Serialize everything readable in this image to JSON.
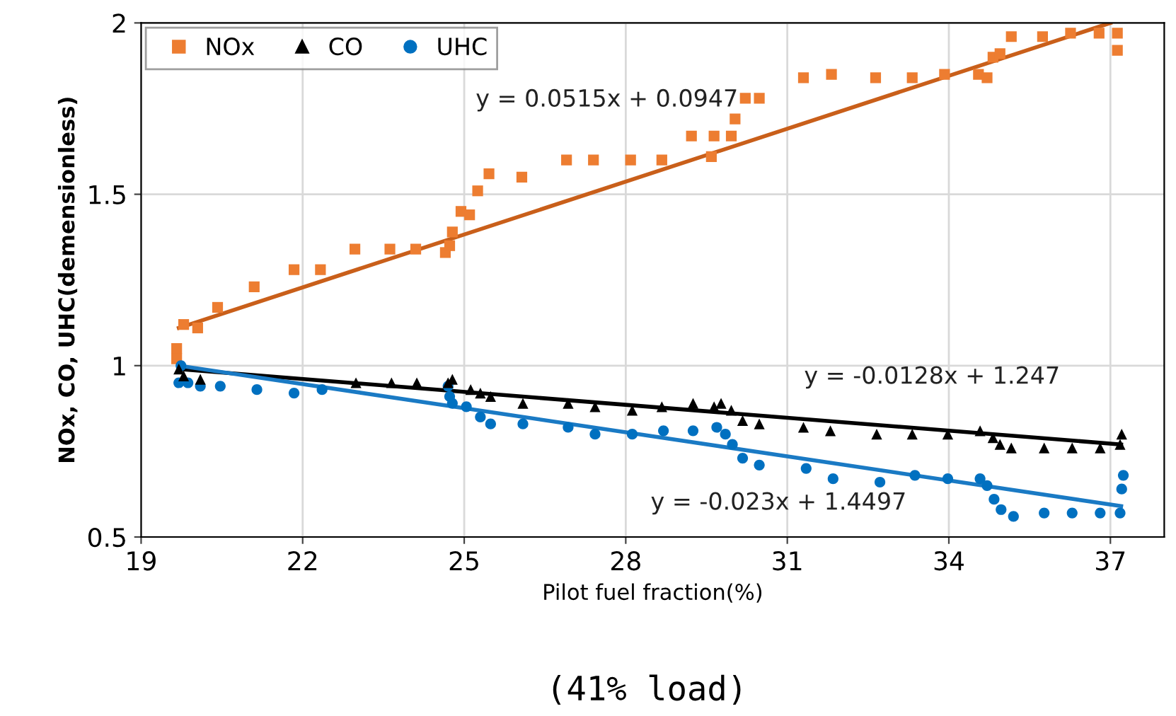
{
  "chart_data": {
    "type": "scatter",
    "xlabel": "Pilot fuel fraction(%)",
    "ylabel": "NOx, CO, UHC(demensionless)",
    "xlim": [
      19,
      38
    ],
    "xticks": [
      19,
      22,
      25,
      28,
      31,
      34,
      37
    ],
    "ylim": [
      0.5,
      2
    ],
    "yticks": [
      0.5,
      1,
      1.5,
      2
    ],
    "grid": true,
    "legend": "top left",
    "series": [
      {
        "name": "NOx",
        "color": "#ed7d31",
        "marker": "square",
        "x": [
          19.66,
          19.66,
          19.79,
          20.05,
          20.42,
          21.1,
          21.84,
          22.33,
          22.97,
          23.62,
          24.1,
          24.65,
          24.73,
          24.78,
          24.94,
          25.1,
          25.25,
          25.46,
          26.07,
          26.9,
          27.4,
          28.09,
          28.67,
          29.22,
          29.59,
          29.64,
          29.96,
          30.03,
          30.22,
          30.48,
          31.3,
          31.82,
          32.64,
          33.32,
          33.92,
          34.55,
          34.71,
          34.82,
          34.95,
          35.16,
          35.74,
          36.26,
          36.79,
          37.13,
          37.13
        ],
        "values": [
          1.05,
          1.02,
          1.12,
          1.11,
          1.17,
          1.23,
          1.28,
          1.28,
          1.34,
          1.34,
          1.34,
          1.33,
          1.35,
          1.39,
          1.45,
          1.44,
          1.51,
          1.56,
          1.55,
          1.6,
          1.6,
          1.6,
          1.6,
          1.67,
          1.61,
          1.67,
          1.67,
          1.72,
          1.78,
          1.78,
          1.84,
          1.85,
          1.84,
          1.84,
          1.85,
          1.85,
          1.84,
          1.9,
          1.91,
          1.96,
          1.96,
          1.97,
          1.97,
          1.97,
          1.92
        ]
      },
      {
        "name": "CO",
        "color": "#000000",
        "marker": "triangle",
        "x": [
          19.7,
          19.79,
          20.1,
          22.99,
          23.65,
          24.12,
          24.7,
          24.78,
          25.12,
          25.3,
          25.49,
          26.09,
          26.93,
          27.43,
          28.12,
          28.67,
          29.25,
          29.64,
          29.77,
          29.96,
          30.17,
          30.48,
          31.3,
          31.8,
          32.66,
          33.32,
          33.98,
          34.58,
          34.82,
          34.95,
          35.16,
          35.77,
          36.29,
          36.81,
          37.18,
          37.21
        ],
        "values": [
          0.99,
          0.97,
          0.96,
          0.95,
          0.95,
          0.95,
          0.95,
          0.96,
          0.93,
          0.92,
          0.91,
          0.89,
          0.89,
          0.88,
          0.87,
          0.88,
          0.89,
          0.88,
          0.89,
          0.87,
          0.84,
          0.83,
          0.82,
          0.81,
          0.8,
          0.8,
          0.8,
          0.81,
          0.79,
          0.77,
          0.76,
          0.76,
          0.76,
          0.76,
          0.77,
          0.8
        ]
      },
      {
        "name": "UHC",
        "color": "#0070c0",
        "marker": "circle",
        "x": [
          19.74,
          19.7,
          19.87,
          20.1,
          20.47,
          21.15,
          21.84,
          22.36,
          24.7,
          24.73,
          24.78,
          25.04,
          25.3,
          25.49,
          26.09,
          26.93,
          27.43,
          28.12,
          28.7,
          29.25,
          29.69,
          29.85,
          29.98,
          30.17,
          30.48,
          31.35,
          31.85,
          32.72,
          33.37,
          33.98,
          34.58,
          34.71,
          34.84,
          34.97,
          35.2,
          35.77,
          36.29,
          36.81,
          37.18,
          37.21,
          37.24
        ],
        "values": [
          1.0,
          0.95,
          0.95,
          0.94,
          0.94,
          0.93,
          0.92,
          0.93,
          0.94,
          0.91,
          0.89,
          0.88,
          0.85,
          0.83,
          0.83,
          0.82,
          0.8,
          0.8,
          0.81,
          0.81,
          0.82,
          0.8,
          0.77,
          0.73,
          0.71,
          0.7,
          0.67,
          0.66,
          0.68,
          0.67,
          0.67,
          0.65,
          0.61,
          0.58,
          0.56,
          0.57,
          0.57,
          0.57,
          0.57,
          0.64,
          0.68
        ]
      },
      {
        "type": "line",
        "color": "#c95f1a",
        "marker": "none",
        "x": [
          19.7,
          37.0
        ],
        "values": [
          1.11,
          2.0
        ]
      },
      {
        "type": "line",
        "color": "#000000",
        "marker": "none",
        "x": [
          19.7,
          37.2
        ],
        "values": [
          0.99,
          0.77
        ]
      },
      {
        "type": "line",
        "color": "#1a7ac4",
        "marker": "none",
        "x": [
          19.7,
          37.2
        ],
        "values": [
          1.0,
          0.59
        ]
      }
    ],
    "annotations": [
      "y = 0.0515x + 0.0947",
      "y = -0.0128x + 1.247",
      "y = -0.023x + 1.4497",
      "(41% load)"
    ]
  }
}
